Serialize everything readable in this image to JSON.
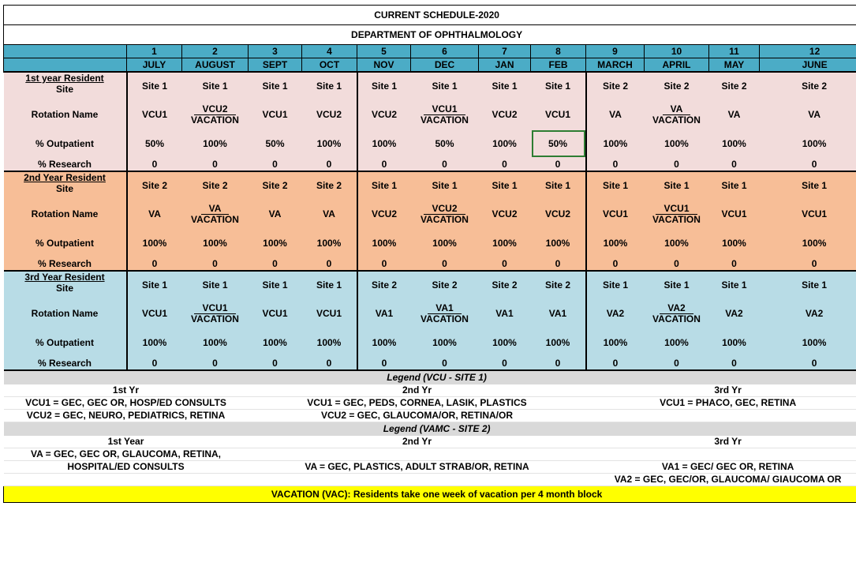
{
  "title": "CURRENT SCHEDULE-2020",
  "department": "DEPARTMENT OF OPHTHALMOLOGY",
  "block_numbers": [
    "1",
    "2",
    "3",
    "4",
    "5",
    "6",
    "7",
    "8",
    "9",
    "10",
    "11",
    "12"
  ],
  "months": [
    "JULY",
    "AUGUST",
    "SEPT",
    "OCT",
    "NOV",
    "DEC",
    "JAN",
    "FEB",
    "MARCH",
    "APRIL",
    "MAY",
    "JUNE"
  ],
  "labels": {
    "site": "Site",
    "rotation": "Rotation Name",
    "outpatient": "% Outpatient",
    "research": "% Research"
  },
  "vacation_word": "VACATION",
  "residents": [
    {
      "group": "1st year Resident",
      "sites": [
        "Site 1",
        "Site 1",
        "Site 1",
        "Site 1",
        "Site 1",
        "Site 1",
        "Site 1",
        "Site 1",
        "Site 2",
        "Site 2",
        "Site 2",
        "Site 2"
      ],
      "rotations": [
        "VCU1",
        "VCU2",
        "VCU1",
        "VCU2",
        "VCU2",
        "VCU1",
        "VCU2",
        "VCU1",
        "VA",
        "VA",
        "VA",
        "VA"
      ],
      "outpatient": [
        "50%",
        "100%",
        "50%",
        "100%",
        "100%",
        "50%",
        "100%",
        "50%",
        "100%",
        "100%",
        "100%",
        "100%"
      ],
      "research": [
        "0",
        "0",
        "0",
        "0",
        "0",
        "0",
        "0",
        "0",
        "0",
        "0",
        "0",
        "0"
      ]
    },
    {
      "group": "2nd Year Resident",
      "sites": [
        "Site 2",
        "Site 2",
        "Site 2",
        "Site 2",
        "Site 1",
        "Site 1",
        "Site 1",
        "Site 1",
        "Site 1",
        "Site 1",
        "Site 1",
        "Site 1"
      ],
      "rotations": [
        "VA",
        "VA",
        "VA",
        "VA",
        "VCU2",
        "VCU2",
        "VCU2",
        "VCU2",
        "VCU1",
        "VCU1",
        "VCU1",
        "VCU1"
      ],
      "outpatient": [
        "100%",
        "100%",
        "100%",
        "100%",
        "100%",
        "100%",
        "100%",
        "100%",
        "100%",
        "100%",
        "100%",
        "100%"
      ],
      "research": [
        "0",
        "0",
        "0",
        "0",
        "0",
        "0",
        "0",
        "0",
        "0",
        "0",
        "0",
        "0"
      ]
    },
    {
      "group": "3rd Year Resident",
      "sites": [
        "Site 1",
        "Site 1",
        "Site 1",
        "Site 1",
        "Site 2",
        "Site 2",
        "Site 2",
        "Site 2",
        "Site 1",
        "Site 1",
        "Site 1",
        "Site 1"
      ],
      "rotations": [
        "VCU1",
        "VCU1",
        "VCU1",
        "VCU1",
        "VA1",
        "VA1",
        "VA1",
        "VA1",
        "VA2",
        "VA2",
        "VA2",
        "VA2"
      ],
      "outpatient": [
        "100%",
        "100%",
        "100%",
        "100%",
        "100%",
        "100%",
        "100%",
        "100%",
        "100%",
        "100%",
        "100%",
        "100%"
      ],
      "research": [
        "0",
        "0",
        "0",
        "0",
        "0",
        "0",
        "0",
        "0",
        "0",
        "0",
        "0",
        "0"
      ]
    }
  ],
  "legend_vcu": {
    "heading": "Legend (VCU - SITE 1)",
    "col1_head": "1st Yr",
    "col2_head": "2nd Yr",
    "col3_head": "3rd Yr",
    "c1_l1": "VCU1 = GEC, GEC OR, HOSP/ED CONSULTS",
    "c1_l2": "VCU2 = GEC, NEURO, PEDIATRICS, RETINA",
    "c2_l1": "VCU1 = GEC, PEDS, CORNEA, LASIK, PLASTICS",
    "c2_l2": "VCU2 = GEC, GLAUCOMA/OR, RETINA/OR",
    "c3_l1": "VCU1 = PHACO, GEC, RETINA"
  },
  "legend_vamc": {
    "heading": "Legend (VAMC - SITE 2)",
    "col1_head": "1st Year",
    "col2_head": "2nd Yr",
    "col3_head": "3rd Yr",
    "c1_l1": "VA = GEC, GEC OR,  GLAUCOMA, RETINA,",
    "c1_l2": "HOSPITAL/ED CONSULTS",
    "c2_l1": "VA = GEC, PLASTICS, ADULT STRAB/OR, RETINA",
    "c3_l1": "VA1 = GEC/ GEC OR, RETINA",
    "c3_l2": "VA2 = GEC, GEC/OR, GLAUCOMA/ GIAUCOMA OR"
  },
  "vacation_note": {
    "label": "VACATION (VAC):",
    "text": " Residents take one week of vacation per 4 month block"
  },
  "colors": {
    "header": "#4bacc6",
    "year1": "#f2dcdb",
    "year2": "#f7be97",
    "year3": "#b8dce6",
    "legend_band": "#d9d9d9",
    "vacation_band": "#ffff00",
    "selection": "#2e7d32"
  }
}
